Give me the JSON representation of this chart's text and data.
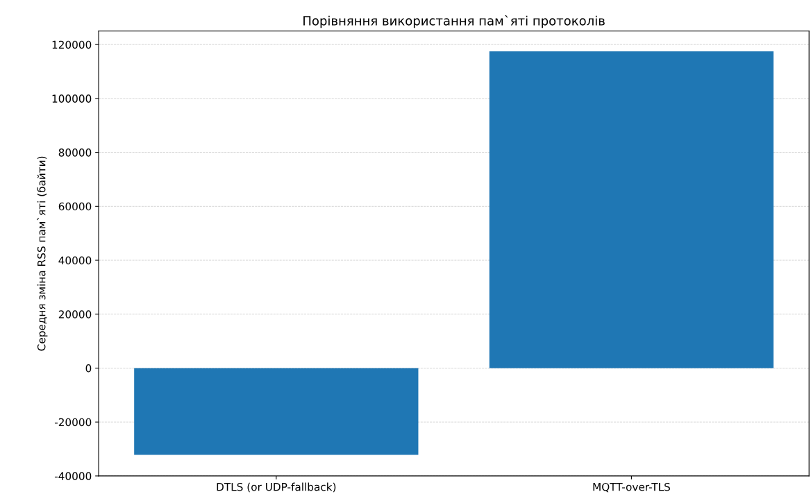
{
  "chart_data": {
    "type": "bar",
    "title": "Порівняння використання пам`яті протоколів",
    "ylabel": "Середня зміна RSS пам`яті (байти)",
    "categories": [
      "DTLS (or UDP-fallback)",
      "MQTT-over-TLS"
    ],
    "values": [
      -32200,
      117500
    ],
    "color": "#1f77b4",
    "ylim": [
      -40000,
      125000
    ],
    "yticks": [
      -40000,
      -20000,
      0,
      20000,
      40000,
      60000,
      80000,
      100000,
      120000
    ],
    "grid": "y",
    "line_style": "dashed"
  }
}
